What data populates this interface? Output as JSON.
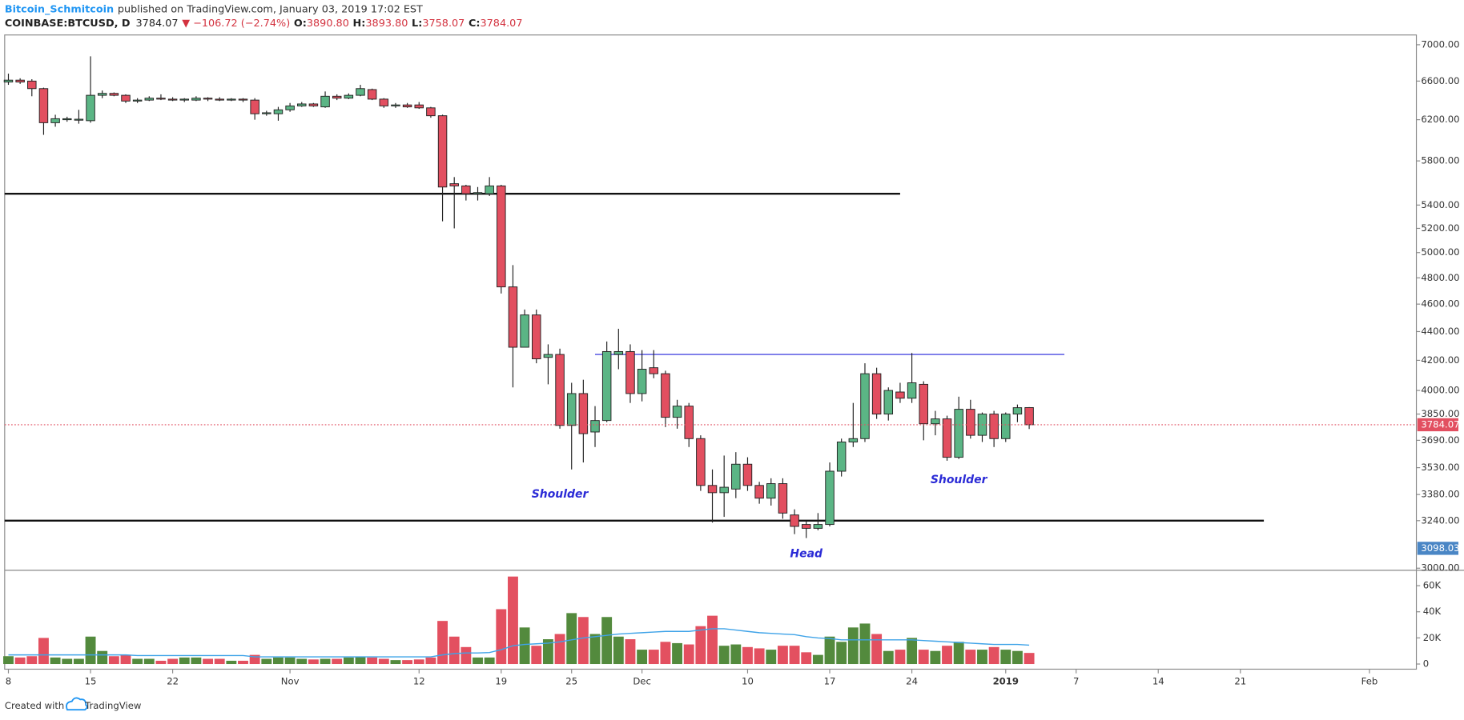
{
  "header": {
    "author": "Bitcoin_Schmitcoin",
    "published": "published on TradingView.com, January 03, 2019 17:02 EST",
    "symbol": "COINBASE:BTCUSD, D",
    "price": "3784.07",
    "change": "▼ −106.72 (−2.74%)",
    "ohlc_labels": [
      "O:",
      "H:",
      "L:",
      "C:"
    ],
    "ohlc": [
      "3890.80",
      "3893.80",
      "3758.07",
      "3784.07"
    ]
  },
  "chart_data": {
    "type": "candlestick",
    "log_scale": true,
    "grid": false,
    "up_color": "#5bb585",
    "down_color": "#e24f60",
    "x": [
      "2018-10-08",
      "2018-10-09",
      "2018-10-10",
      "2018-10-11",
      "2018-10-12",
      "2018-10-13",
      "2018-10-14",
      "2018-10-15",
      "2018-10-16",
      "2018-10-17",
      "2018-10-18",
      "2018-10-19",
      "2018-10-20",
      "2018-10-21",
      "2018-10-22",
      "2018-10-23",
      "2018-10-24",
      "2018-10-25",
      "2018-10-26",
      "2018-10-27",
      "2018-10-28",
      "2018-10-29",
      "2018-10-30",
      "2018-10-31",
      "2018-11-01",
      "2018-11-02",
      "2018-11-03",
      "2018-11-04",
      "2018-11-05",
      "2018-11-06",
      "2018-11-07",
      "2018-11-08",
      "2018-11-09",
      "2018-11-10",
      "2018-11-11",
      "2018-11-12",
      "2018-11-13",
      "2018-11-14",
      "2018-11-15",
      "2018-11-16",
      "2018-11-17",
      "2018-11-18",
      "2018-11-19",
      "2018-11-20",
      "2018-11-21",
      "2018-11-22",
      "2018-11-23",
      "2018-11-24",
      "2018-11-25",
      "2018-11-26",
      "2018-11-27",
      "2018-11-28",
      "2018-11-29",
      "2018-11-30",
      "2018-12-01",
      "2018-12-02",
      "2018-12-03",
      "2018-12-04",
      "2018-12-05",
      "2018-12-06",
      "2018-12-07",
      "2018-12-08",
      "2018-12-09",
      "2018-12-10",
      "2018-12-11",
      "2018-12-12",
      "2018-12-13",
      "2018-12-14",
      "2018-12-15",
      "2018-12-16",
      "2018-12-17",
      "2018-12-18",
      "2018-12-19",
      "2018-12-20",
      "2018-12-21",
      "2018-12-22",
      "2018-12-23",
      "2018-12-24",
      "2018-12-25",
      "2018-12-26",
      "2018-12-27",
      "2018-12-28",
      "2018-12-29",
      "2018-12-30",
      "2018-12-31",
      "2019-01-01",
      "2019-01-02",
      "2019-01-03"
    ],
    "open": [
      6590,
      6610,
      6600,
      6520,
      6170,
      6200,
      6195,
      6190,
      6450,
      6470,
      6450,
      6390,
      6400,
      6420,
      6410,
      6400,
      6400,
      6420,
      6410,
      6400,
      6410,
      6400,
      6260,
      6260,
      6300,
      6340,
      6360,
      6330,
      6440,
      6420,
      6450,
      6510,
      6410,
      6340,
      6350,
      6350,
      6320,
      6240,
      5590,
      5570,
      5500,
      5500,
      5570,
      4730,
      4290,
      4520,
      4220,
      4240,
      3780,
      3980,
      3740,
      3810,
      4240,
      4260,
      3980,
      4150,
      4110,
      3830,
      3900,
      3700,
      3430,
      3390,
      3410,
      3550,
      3430,
      3360,
      3440,
      3270,
      3220,
      3200,
      3220,
      3510,
      3680,
      3700,
      4110,
      3850,
      3990,
      3950,
      4040,
      3790,
      3820,
      3590,
      3880,
      3720,
      3850,
      3700,
      3850,
      3890.8
    ],
    "high": [
      6680,
      6630,
      6620,
      6530,
      6250,
      6230,
      6300,
      6870,
      6500,
      6480,
      6460,
      6420,
      6440,
      6460,
      6430,
      6420,
      6440,
      6430,
      6430,
      6420,
      6420,
      6420,
      6290,
      6330,
      6370,
      6380,
      6370,
      6490,
      6460,
      6470,
      6560,
      6520,
      6420,
      6370,
      6370,
      6380,
      6330,
      6250,
      5650,
      5580,
      5560,
      5650,
      5580,
      4900,
      4560,
      4560,
      4310,
      4280,
      4050,
      4070,
      3900,
      4330,
      4420,
      4310,
      4270,
      4270,
      4130,
      3940,
      3920,
      3720,
      3520,
      3600,
      3620,
      3590,
      3450,
      3470,
      3470,
      3300,
      3240,
      3280,
      3560,
      3700,
      3920,
      4180,
      4150,
      4020,
      4050,
      4250,
      4060,
      3870,
      3840,
      3960,
      3940,
      3860,
      3870,
      3860,
      3910,
      3893.8
    ],
    "low": [
      6560,
      6570,
      6440,
      6050,
      6130,
      6180,
      6160,
      6170,
      6420,
      6440,
      6370,
      6370,
      6390,
      6400,
      6390,
      6380,
      6390,
      6390,
      6390,
      6390,
      6380,
      6200,
      6240,
      6190,
      6280,
      6330,
      6330,
      6320,
      6400,
      6410,
      6440,
      6400,
      6320,
      6320,
      6320,
      6310,
      6220,
      5260,
      5200,
      5440,
      5440,
      5480,
      4680,
      4020,
      4290,
      4180,
      4040,
      3760,
      3520,
      3560,
      3650,
      3800,
      4140,
      3920,
      3930,
      4080,
      3770,
      3760,
      3650,
      3400,
      3230,
      3260,
      3360,
      3400,
      3330,
      3320,
      3250,
      3170,
      3150,
      3190,
      3210,
      3480,
      3650,
      3680,
      3820,
      3810,
      3920,
      3920,
      3690,
      3720,
      3570,
      3580,
      3700,
      3680,
      3650,
      3680,
      3800,
      3758.07
    ],
    "close": [
      6610,
      6590,
      6520,
      6170,
      6210,
      6210,
      6205,
      6450,
      6470,
      6450,
      6390,
      6400,
      6420,
      6410,
      6400,
      6410,
      6420,
      6410,
      6400,
      6410,
      6400,
      6260,
      6270,
      6300,
      6340,
      6360,
      6340,
      6440,
      6420,
      6450,
      6520,
      6410,
      6340,
      6350,
      6330,
      6320,
      6240,
      5560,
      5570,
      5500,
      5510,
      5570,
      4730,
      4290,
      4520,
      4210,
      4240,
      3780,
      3980,
      3730,
      3810,
      4260,
      4260,
      3980,
      4140,
      4110,
      3830,
      3900,
      3700,
      3430,
      3390,
      3420,
      3550,
      3430,
      3360,
      3440,
      3280,
      3210,
      3200,
      3220,
      3510,
      3680,
      3700,
      4110,
      3850,
      4000,
      3950,
      4050,
      3790,
      3820,
      3590,
      3880,
      3720,
      3850,
      3700,
      3850,
      3890,
      3784.07
    ],
    "ylim": [
      2992,
      7106
    ],
    "yticks": [
      {
        "value": 7000,
        "label": "7000.00"
      },
      {
        "value": 6600,
        "label": "6600.00"
      },
      {
        "value": 6200,
        "label": "6200.00"
      },
      {
        "value": 5800,
        "label": "5800.00"
      },
      {
        "value": 5400,
        "label": "5400.00"
      },
      {
        "value": 5200,
        "label": "5200.00"
      },
      {
        "value": 5000,
        "label": "5000.00"
      },
      {
        "value": 4800,
        "label": "4800.00"
      },
      {
        "value": 4600,
        "label": "4600.00"
      },
      {
        "value": 4400,
        "label": "4400.00"
      },
      {
        "value": 4200,
        "label": "4200.00"
      },
      {
        "value": 4000,
        "label": "4000.00"
      },
      {
        "value": 3850,
        "label": "3850.00"
      },
      {
        "value": 3690,
        "label": "3690.00"
      },
      {
        "value": 3530,
        "label": "3530.00"
      },
      {
        "value": 3380,
        "label": "3380.00"
      },
      {
        "value": 3240,
        "label": "3240.00"
      },
      {
        "value": 3000,
        "label": "3000.00"
      }
    ],
    "xlim": [
      "2018-10-08",
      "2019-02-05"
    ],
    "xticks": [
      {
        "value": "2018-10-08",
        "label": "8"
      },
      {
        "value": "2018-10-15",
        "label": "15"
      },
      {
        "value": "2018-10-22",
        "label": "22"
      },
      {
        "value": "2018-11-01",
        "label": "Nov"
      },
      {
        "value": "2018-11-12",
        "label": "12"
      },
      {
        "value": "2018-11-19",
        "label": "19"
      },
      {
        "value": "2018-11-25",
        "label": "25"
      },
      {
        "value": "2018-12-01",
        "label": "Dec"
      },
      {
        "value": "2018-12-10",
        "label": "10"
      },
      {
        "value": "2018-12-17",
        "label": "17"
      },
      {
        "value": "2018-12-24",
        "label": "24"
      },
      {
        "value": "2019-01-01",
        "label": "2019"
      },
      {
        "value": "2019-01-07",
        "label": "7"
      },
      {
        "value": "2019-01-14",
        "label": "14"
      },
      {
        "value": "2019-01-21",
        "label": "21"
      },
      {
        "value": "2019-02-01",
        "label": "Feb"
      }
    ],
    "levels": [
      {
        "price": 5500,
        "color": "#111111",
        "end": "2018-12-23"
      },
      {
        "price": 3240,
        "color": "#111111",
        "end": "2019-01-23"
      },
      {
        "price": 4240,
        "color": "#4a4ae0",
        "start": "2018-11-27",
        "end": "2019-01-06"
      }
    ],
    "last_price_color": "#e24f60",
    "marker_price": 3098.03,
    "marker_color": "#4a86c5",
    "annotations": [
      {
        "text": "Shoulder",
        "date": "2018-11-24",
        "price": 3380
      },
      {
        "text": "Head",
        "date": "2018-12-15",
        "price": 3070
      },
      {
        "text": "Shoulder",
        "date": "2018-12-28",
        "price": 3460
      }
    ],
    "volume": {
      "up_color": "#538a3d",
      "down_color": "#e35060",
      "ma_color": "#3fa3e8",
      "values": [
        6000,
        5000,
        6000,
        20000,
        5000,
        4000,
        4000,
        21000,
        10000,
        6000,
        7000,
        4000,
        4000,
        2500,
        4000,
        5000,
        5000,
        4000,
        4000,
        2500,
        2500,
        7000,
        4000,
        5000,
        5000,
        4000,
        3500,
        4000,
        4000,
        5000,
        5500,
        5000,
        4000,
        3000,
        3000,
        3500,
        5000,
        33000,
        21000,
        13000,
        5000,
        5000,
        42000,
        67000,
        28000,
        14000,
        19000,
        23000,
        39000,
        36000,
        23000,
        36000,
        21000,
        19000,
        11000,
        11000,
        17000,
        16000,
        15000,
        29000,
        37000,
        14000,
        15000,
        13000,
        12000,
        11000,
        14000,
        14000,
        9000,
        7000,
        21000,
        17000,
        28000,
        31000,
        23000,
        10000,
        11000,
        20000,
        11000,
        10000,
        14000,
        17000,
        11000,
        11000,
        13000,
        11000,
        10000,
        8500
      ],
      "ma": [
        7000,
        7000,
        7000,
        7000,
        7000,
        7000,
        7000,
        7000,
        7000,
        7000,
        7000,
        6500,
        6500,
        6500,
        6500,
        6500,
        6500,
        6500,
        6500,
        6500,
        6500,
        5500,
        5500,
        5500,
        5500,
        5500,
        5500,
        5500,
        5500,
        5500,
        5500,
        5500,
        5500,
        5500,
        5500,
        5500,
        5500,
        7000,
        8000,
        8500,
        8500,
        8800,
        11000,
        14000,
        15000,
        15500,
        16000,
        17000,
        18500,
        20000,
        21000,
        22000,
        23000,
        23500,
        24000,
        24500,
        25000,
        25000,
        25000,
        26000,
        27000,
        27000,
        26000,
        25000,
        24000,
        23500,
        23000,
        22500,
        21000,
        20000,
        19500,
        18500,
        18500,
        18500,
        18500,
        18500,
        18500,
        18500,
        18000,
        17500,
        17000,
        16500,
        16000,
        15500,
        15000,
        15000,
        15000,
        14500
      ],
      "ylim": [
        -4300,
        70700
      ],
      "yticks": [
        0,
        {
          "value": 20000,
          "label": "20K"
        },
        {
          "value": 40000,
          "label": "40K"
        },
        {
          "value": 60000,
          "label": "60K"
        }
      ]
    }
  },
  "footer": {
    "created": "Created with",
    "brand": "TradingView"
  }
}
